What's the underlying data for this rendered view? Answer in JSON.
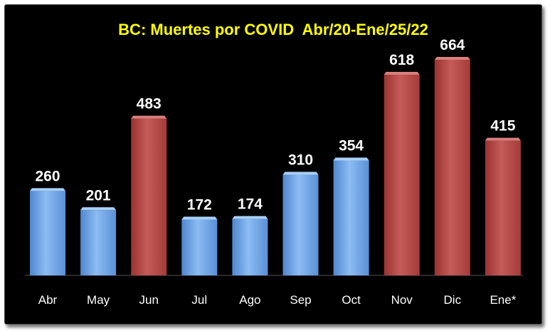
{
  "chart_data": {
    "type": "bar",
    "title": "BC: Muertes por COVID  Abr/20-Ene/25/22",
    "xlabel": "",
    "ylabel": "",
    "categories": [
      "Abr",
      "May",
      "Jun",
      "Jul",
      "Ago",
      "Sep",
      "Oct",
      "Nov",
      "Dic",
      "Ene*"
    ],
    "values": [
      260,
      201,
      483,
      172,
      174,
      310,
      354,
      618,
      664,
      415
    ],
    "bar_colors": [
      "#6fa8e8",
      "#6fa8e8",
      "#b84a48",
      "#6fa8e8",
      "#6fa8e8",
      "#6fa8e8",
      "#6fa8e8",
      "#b84a48",
      "#b84a48",
      "#b84a48"
    ],
    "ylim": [
      0,
      700
    ],
    "grid": false,
    "legend": "none",
    "colors": {
      "background": "#000000",
      "title": "#ffff00",
      "text": "#ffffff",
      "blue_bar": "#6fa8e8",
      "red_bar": "#b84a48"
    }
  }
}
